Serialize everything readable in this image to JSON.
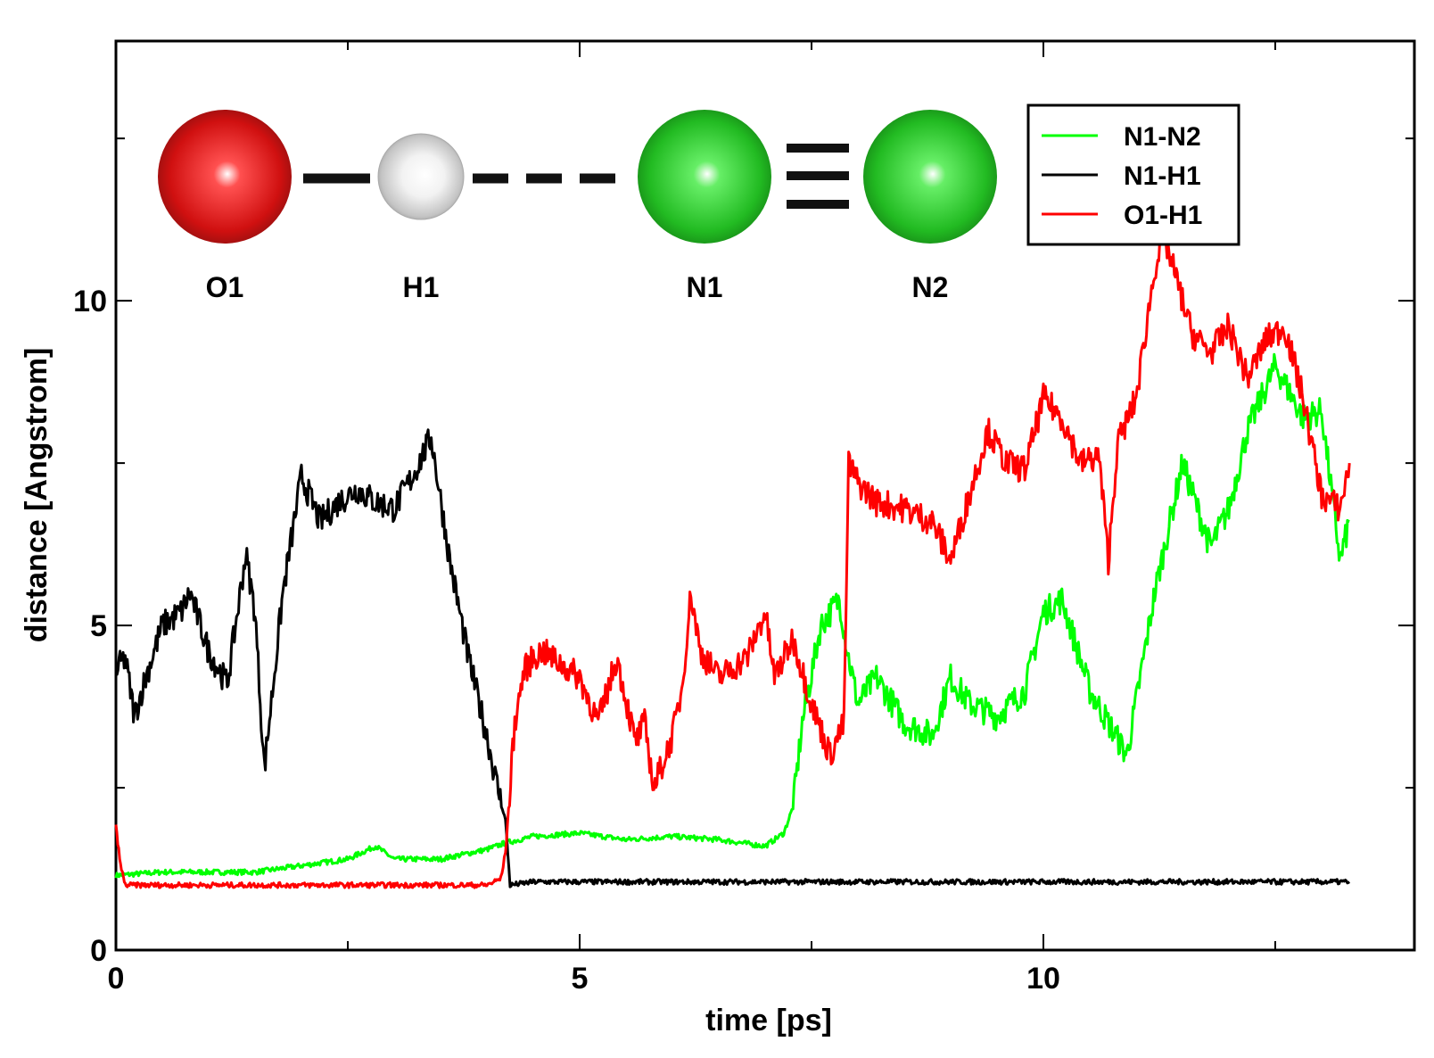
{
  "chart_data": {
    "type": "line",
    "xlabel": "time [ps]",
    "ylabel": "distance [Angstrom]",
    "xlim": [
      0,
      14
    ],
    "ylim": [
      0,
      14
    ],
    "x_ticks": [
      0,
      5,
      10
    ],
    "y_ticks": [
      0,
      5,
      10
    ],
    "grid": false,
    "legend_position": "top-right",
    "colors": {
      "N1-N2": "#00ff00",
      "N1-H1": "#000000",
      "O1-H1": "#ff0000"
    },
    "series": [
      {
        "name": "N1-N2",
        "x": [
          0.0,
          0.5,
          1.0,
          1.5,
          2.0,
          2.5,
          2.8,
          3.0,
          3.5,
          4.0,
          4.2,
          4.5,
          5.0,
          5.5,
          6.0,
          6.5,
          7.0,
          7.2,
          7.3,
          7.4,
          7.6,
          7.8,
          7.9,
          8.0,
          8.2,
          8.5,
          8.8,
          9.0,
          9.2,
          9.5,
          9.8,
          10.0,
          10.2,
          10.5,
          10.7,
          10.9,
          11.2,
          11.5,
          11.8,
          12.0,
          12.2,
          12.5,
          12.8,
          13.0,
          13.2,
          13.3
        ],
        "y": [
          1.15,
          1.2,
          1.2,
          1.2,
          1.3,
          1.4,
          1.6,
          1.4,
          1.4,
          1.55,
          1.65,
          1.75,
          1.8,
          1.7,
          1.75,
          1.7,
          1.6,
          1.8,
          2.2,
          3.5,
          5.0,
          5.4,
          4.5,
          3.8,
          4.2,
          3.5,
          3.3,
          4.2,
          3.8,
          3.6,
          4.0,
          5.2,
          5.4,
          4.0,
          3.5,
          3.0,
          5.5,
          7.5,
          6.2,
          6.8,
          8.0,
          9.0,
          8.2,
          8.3,
          6.0,
          6.6
        ]
      },
      {
        "name": "N1-H1",
        "x": [
          0.0,
          0.1,
          0.2,
          0.3,
          0.5,
          0.7,
          0.8,
          1.0,
          1.2,
          1.4,
          1.5,
          1.6,
          1.8,
          2.0,
          2.2,
          2.4,
          2.6,
          2.8,
          3.0,
          3.2,
          3.4,
          3.6,
          3.8,
          4.0,
          4.1,
          4.2,
          4.25,
          4.5,
          5.0,
          6.0,
          7.0,
          8.0,
          9.0,
          10.0,
          11.0,
          12.0,
          13.3
        ],
        "y": [
          4.3,
          4.5,
          3.6,
          4.1,
          5.0,
          5.2,
          5.5,
          4.6,
          4.1,
          6.1,
          5.2,
          2.8,
          5.5,
          7.3,
          6.6,
          6.9,
          7.1,
          6.9,
          6.8,
          7.3,
          7.9,
          6.0,
          4.5,
          3.3,
          2.6,
          2.0,
          1.0,
          1.05,
          1.05,
          1.05,
          1.05,
          1.05,
          1.05,
          1.05,
          1.05,
          1.05,
          1.05
        ]
      },
      {
        "name": "O1-H1",
        "x": [
          0.0,
          0.05,
          0.1,
          0.2,
          0.5,
          1.0,
          1.5,
          2.0,
          2.5,
          3.0,
          3.5,
          4.0,
          4.15,
          4.2,
          4.3,
          4.4,
          4.5,
          4.6,
          4.8,
          5.0,
          5.2,
          5.4,
          5.6,
          5.7,
          5.8,
          6.0,
          6.1,
          6.2,
          6.3,
          6.5,
          6.8,
          7.0,
          7.1,
          7.3,
          7.5,
          7.7,
          7.85,
          7.9,
          8.0,
          8.2,
          8.5,
          8.8,
          9.0,
          9.2,
          9.4,
          9.6,
          9.8,
          10.0,
          10.2,
          10.4,
          10.6,
          10.7,
          10.8,
          11.0,
          11.2,
          11.3,
          11.4,
          11.6,
          11.8,
          12.0,
          12.2,
          12.4,
          12.6,
          12.8,
          13.0,
          13.2,
          13.3
        ],
        "y": [
          1.9,
          1.3,
          1.0,
          1.0,
          1.0,
          1.0,
          1.0,
          1.0,
          1.0,
          1.0,
          1.0,
          1.0,
          1.1,
          1.5,
          3.5,
          4.3,
          4.5,
          4.6,
          4.4,
          4.2,
          3.5,
          4.5,
          3.2,
          3.5,
          2.5,
          3.3,
          4.0,
          5.5,
          4.6,
          4.2,
          4.5,
          5.2,
          4.2,
          4.8,
          3.8,
          3.0,
          3.5,
          7.5,
          7.2,
          6.9,
          6.8,
          6.6,
          6.0,
          7.0,
          8.0,
          7.5,
          7.4,
          8.5,
          8.2,
          7.5,
          7.6,
          6.0,
          7.8,
          8.5,
          10.5,
          11.0,
          10.5,
          9.5,
          9.2,
          9.6,
          8.8,
          9.4,
          9.6,
          8.5,
          7.0,
          6.8,
          7.5
        ]
      }
    ],
    "legend": [
      "N1-N2",
      "N1-H1",
      "O1-H1"
    ],
    "molecule": {
      "atoms": [
        {
          "label": "O1",
          "color": "#e02020"
        },
        {
          "label": "H1",
          "color": "#ffffff"
        },
        {
          "label": "N1",
          "color": "#22cc22"
        },
        {
          "label": "N2",
          "color": "#22cc22"
        }
      ]
    }
  }
}
